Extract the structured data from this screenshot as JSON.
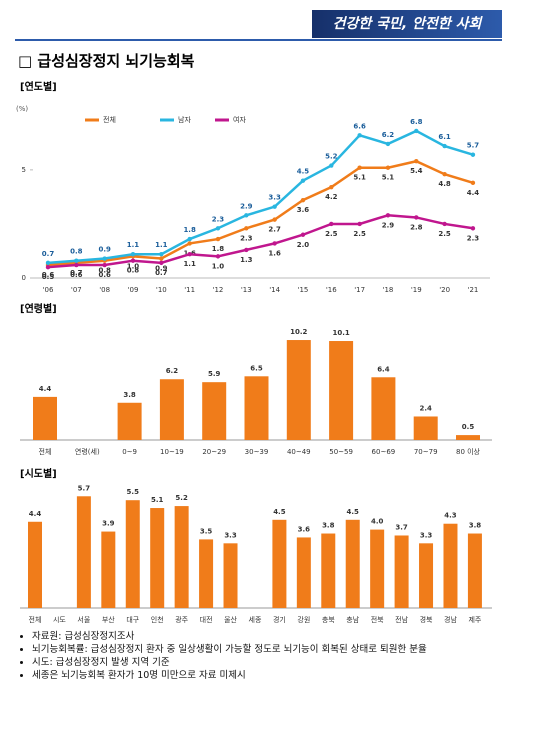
{
  "header": {
    "banner": "건강한 국민, 안전한 사회",
    "title": "□ 급성심장정지 뇌기능회복"
  },
  "section_labels": [
    "[연도별]",
    "[연령별]",
    "[시도별]"
  ],
  "chart_data": [
    {
      "type": "line",
      "y_label": "(%)",
      "categories": [
        "'06",
        "'07",
        "'08",
        "'09",
        "'10",
        "'11",
        "'12",
        "'13",
        "'14",
        "'15",
        "'16",
        "'17",
        "'18",
        "'19",
        "'20",
        "'21"
      ],
      "ylim": [
        0,
        8
      ],
      "yticks": [
        0,
        5
      ],
      "legend": "top",
      "series": [
        {
          "name": "전체",
          "color": "#f07c1a",
          "values": [
            0.6,
            0.7,
            0.8,
            1.0,
            0.9,
            1.6,
            1.8,
            2.3,
            2.7,
            3.6,
            4.2,
            5.1,
            5.1,
            5.4,
            4.8,
            4.4
          ],
          "value_labels": [
            "0.6",
            "0.7",
            "0.8",
            "1.0",
            "0.9",
            "1.6",
            "1.8",
            "2.3",
            "2.7",
            "3.6",
            "4.2",
            "5.1",
            "5.1",
            "5.4",
            "4.8",
            "4.4"
          ]
        },
        {
          "name": "남자",
          "color": "#29b6e0",
          "values": [
            0.7,
            0.8,
            0.9,
            1.1,
            1.1,
            1.8,
            2.3,
            2.9,
            3.3,
            4.5,
            5.2,
            6.6,
            6.2,
            6.8,
            6.1,
            5.7
          ],
          "value_labels": [
            "0.7",
            "0.8",
            "0.9",
            "1.1",
            "1.1",
            "1.8",
            "2.3",
            "2.9",
            "3.3",
            "4.5",
            "5.2",
            "6.6",
            "6.2",
            "6.8",
            "6.1",
            "5.7"
          ]
        },
        {
          "name": "여자",
          "color": "#c0168e",
          "values": [
            0.5,
            0.6,
            0.6,
            0.8,
            0.7,
            1.1,
            1.0,
            1.3,
            1.6,
            2.0,
            2.5,
            2.5,
            2.9,
            2.8,
            2.5,
            2.3
          ],
          "value_labels": [
            "0.5",
            "0.6",
            "0.6",
            "0.8",
            "0.7",
            "1.1",
            "1.0",
            "1.3",
            "1.6",
            "2.0",
            "2.5",
            "2.5",
            "2.9",
            "2.8",
            "2.5",
            "2.3"
          ]
        }
      ]
    },
    {
      "type": "bar",
      "color": "#f07c1a",
      "categories": [
        "전체",
        "연령(세)",
        "0~9",
        "10~19",
        "20~29",
        "30~39",
        "40~49",
        "50~59",
        "60~69",
        "70~79",
        "80 이상"
      ],
      "values": [
        4.4,
        null,
        3.8,
        6.2,
        5.9,
        6.5,
        10.2,
        10.1,
        6.4,
        2.4,
        0.5
      ],
      "value_labels": [
        "4.4",
        null,
        "3.8",
        "6.2",
        "5.9",
        "6.5",
        "10.2",
        "10.1",
        "6.4",
        "2.4",
        "0.5"
      ]
    },
    {
      "type": "bar",
      "color": "#f07c1a",
      "categories": [
        "전체",
        "시도",
        "서울",
        "부산",
        "대구",
        "인천",
        "광주",
        "대전",
        "울산",
        "세종",
        "경기",
        "강원",
        "충북",
        "충남",
        "전북",
        "전남",
        "경북",
        "경남",
        "제주"
      ],
      "values": [
        4.4,
        null,
        5.7,
        3.9,
        5.5,
        5.1,
        5.2,
        3.5,
        3.3,
        null,
        4.5,
        3.6,
        3.8,
        4.5,
        4.0,
        3.7,
        3.3,
        4.3,
        3.8
      ],
      "value_labels": [
        "4.4",
        null,
        "5.7",
        "3.9",
        "5.5",
        "5.1",
        "5.2",
        "3.5",
        "3.3",
        null,
        "4.5",
        "3.6",
        "3.8",
        "4.5",
        "4.0",
        "3.7",
        "3.3",
        "4.3",
        "3.8"
      ]
    }
  ],
  "notes": [
    "자료원: 급성심장정지조사",
    "뇌기능회복률: 급성심장정지 환자 중 일상생활이 가능할 정도로 뇌기능이 회복된 상태로 퇴원한 분율",
    "시도: 급성심장정지 발생 지역 기준",
    "세종은 뇌기능회복 환자가 10명 미만으로 자료 미제시"
  ]
}
